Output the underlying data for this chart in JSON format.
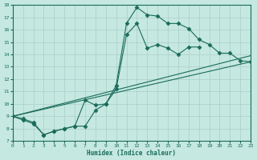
{
  "xlabel": "Humidex (Indice chaleur)",
  "bg_color": "#c5e8e0",
  "line_color": "#1a6b5a",
  "grid_color": "#aacfc8",
  "xlim": [
    0,
    23
  ],
  "ylim": [
    7,
    18
  ],
  "xticks": [
    0,
    1,
    2,
    3,
    4,
    5,
    6,
    7,
    8,
    9,
    10,
    11,
    12,
    13,
    14,
    15,
    16,
    17,
    18,
    19,
    20,
    21,
    22,
    23
  ],
  "yticks": [
    7,
    8,
    9,
    10,
    11,
    12,
    13,
    14,
    15,
    16,
    17,
    18
  ],
  "line1_x": [
    0,
    1,
    2,
    3,
    4,
    5,
    6,
    7,
    8,
    9,
    10,
    11,
    12,
    13,
    14,
    15,
    16,
    17,
    18,
    19,
    20,
    21,
    22,
    23
  ],
  "line1_y": [
    9.0,
    8.8,
    8.5,
    7.5,
    7.8,
    8.0,
    8.2,
    8.2,
    9.5,
    10.0,
    11.5,
    16.5,
    17.8,
    17.2,
    17.1,
    16.5,
    16.5,
    16.1,
    15.2,
    14.8,
    14.1,
    14.1,
    13.5,
    13.4
  ],
  "line2_x": [
    0,
    1,
    2,
    3,
    4,
    5,
    6,
    7,
    8,
    9,
    10,
    11,
    12,
    13,
    14,
    15,
    16,
    17,
    18
  ],
  "line2_y": [
    9.0,
    8.7,
    8.4,
    7.5,
    7.8,
    8.0,
    8.2,
    10.3,
    9.9,
    10.0,
    11.2,
    15.6,
    16.5,
    14.5,
    14.8,
    14.5,
    14.0,
    14.6,
    14.6
  ],
  "line3_x": [
    0,
    23
  ],
  "line3_y": [
    9.0,
    13.4
  ],
  "line4_x": [
    0,
    23
  ],
  "line4_y": [
    9.0,
    13.9
  ]
}
